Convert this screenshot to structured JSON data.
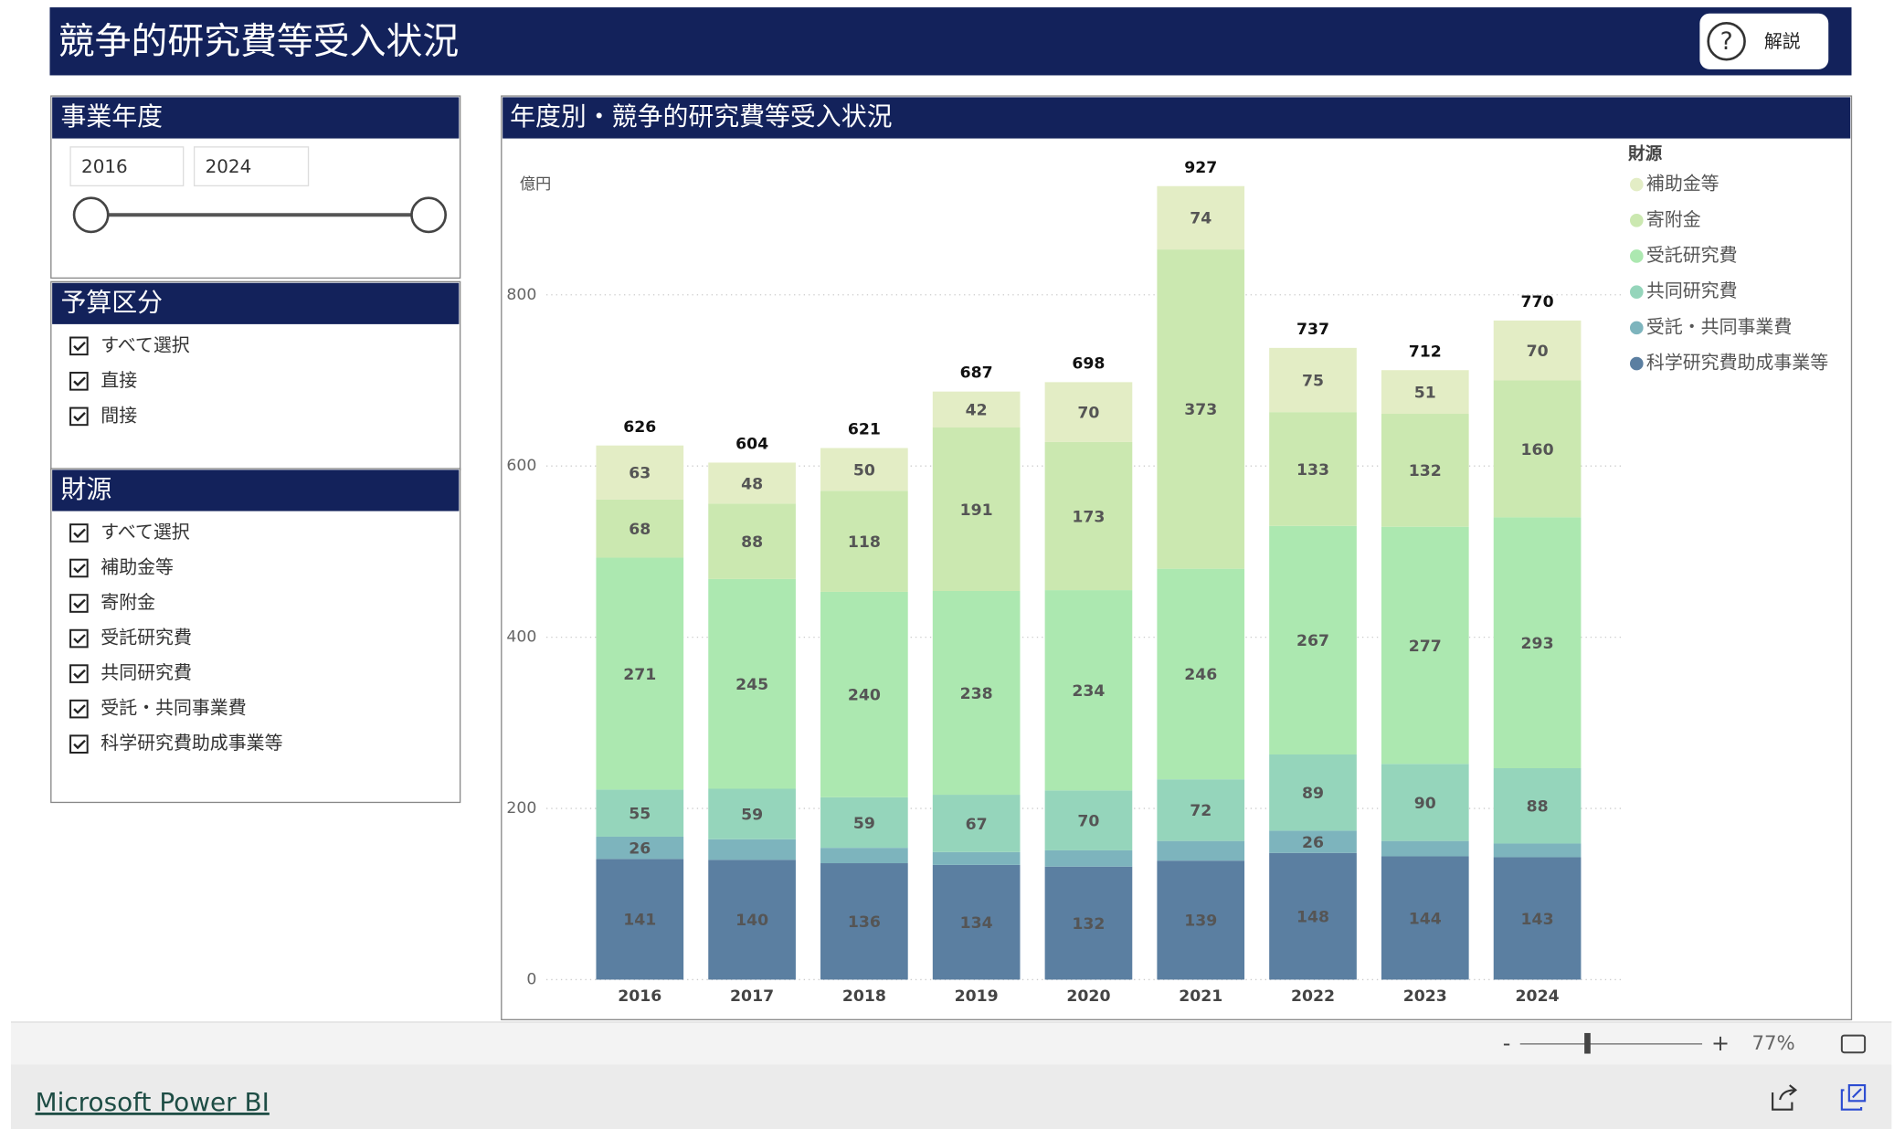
{
  "header": {
    "title": "競争的研究費等受入状況",
    "help_button": "解説"
  },
  "filters": {
    "year": {
      "title": "事業年度",
      "from": "2016",
      "to": "2024"
    },
    "budget": {
      "title": "予算区分",
      "options": [
        "すべて選択",
        "直接",
        "間接"
      ]
    },
    "source": {
      "title": "財源",
      "options": [
        "すべて選択",
        "補助金等",
        "寄附金",
        "受託研究費",
        "共同研究費",
        "受託・共同事業費",
        "科学研究費助成事業等"
      ]
    }
  },
  "chart_data": {
    "type": "stacked_bar",
    "title": "年度別・競争的研究費等受入状況",
    "y_label": "億円",
    "legend_title": "財源",
    "categories": [
      "2016",
      "2017",
      "2018",
      "2019",
      "2020",
      "2021",
      "2022",
      "2023",
      "2024"
    ],
    "series": [
      {
        "name": "科学研究費助成事業等",
        "color": "#5b7fa1",
        "values": [
          141,
          140,
          136,
          134,
          132,
          139,
          148,
          144,
          143
        ]
      },
      {
        "name": "受託・共同事業費",
        "color": "#7db4bd",
        "values": [
          26,
          24,
          18,
          15,
          19,
          23,
          26,
          18,
          16
        ]
      },
      {
        "name": "共同研究費",
        "color": "#95d5bb",
        "values": [
          55,
          59,
          59,
          67,
          70,
          72,
          89,
          90,
          88
        ]
      },
      {
        "name": "受託研究費",
        "color": "#ace8b0",
        "values": [
          271,
          245,
          240,
          238,
          234,
          246,
          267,
          277,
          293
        ]
      },
      {
        "name": "寄附金",
        "color": "#cbe8b0",
        "values": [
          68,
          88,
          118,
          191,
          173,
          373,
          133,
          132,
          160
        ]
      },
      {
        "name": "補助金等",
        "color": "#e3edc5",
        "values": [
          63,
          48,
          50,
          42,
          70,
          74,
          75,
          51,
          70
        ]
      }
    ],
    "totals": [
      626,
      604,
      621,
      687,
      698,
      927,
      737,
      712,
      770
    ],
    "ylim": [
      0,
      977
    ],
    "yticks": [
      0,
      200,
      400,
      600,
      800
    ],
    "grid": true,
    "legend_position": "top-right"
  },
  "footer": {
    "zoom": "77%",
    "link": "Microsoft Power BI"
  }
}
